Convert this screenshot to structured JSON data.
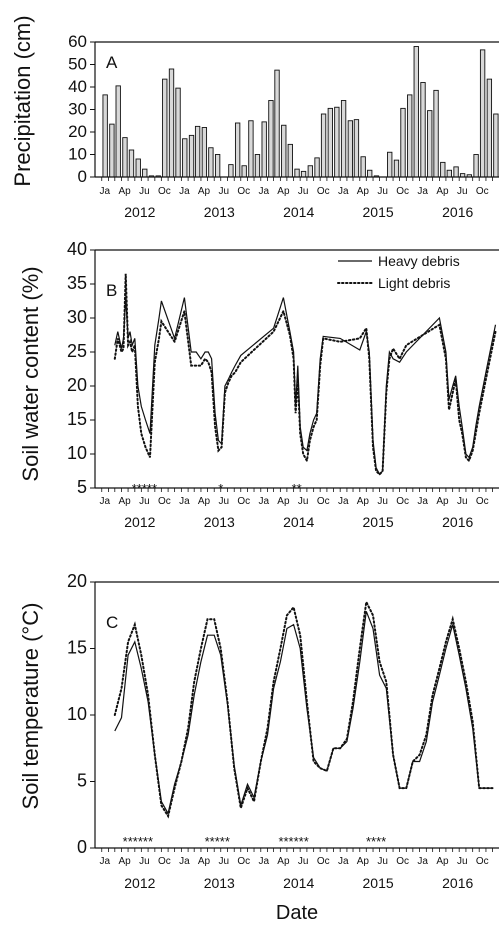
{
  "months": [
    "Ja",
    "Ap",
    "Ju",
    "Oc"
  ],
  "years": [
    "2012",
    "2013",
    "2014",
    "2015",
    "2016"
  ],
  "xlabel": "Date",
  "chart_data": [
    {
      "type": "bar",
      "panel": "A",
      "ylabel": "Precipitation (cm)",
      "ylim": [
        0,
        60
      ],
      "yticks": [
        0,
        10,
        20,
        30,
        40,
        50,
        60
      ],
      "x": [
        "2012-01",
        "2012-02",
        "2012-03",
        "2012-04",
        "2012-05",
        "2012-06",
        "2012-07",
        "2012-08",
        "2012-09",
        "2012-10",
        "2012-11",
        "2012-12",
        "2013-01",
        "2013-02",
        "2013-03",
        "2013-04",
        "2013-05",
        "2013-06",
        "2013-07",
        "2013-08",
        "2013-09",
        "2013-10",
        "2013-11",
        "2013-12",
        "2014-01",
        "2014-02",
        "2014-03",
        "2014-04",
        "2014-05",
        "2014-06",
        "2014-07",
        "2014-08",
        "2014-09",
        "2014-10",
        "2014-11",
        "2014-12",
        "2015-01",
        "2015-02",
        "2015-03",
        "2015-04",
        "2015-05",
        "2015-06",
        "2015-07",
        "2015-08",
        "2015-09",
        "2015-10",
        "2015-11",
        "2015-12",
        "2016-01",
        "2016-02",
        "2016-03",
        "2016-04",
        "2016-05",
        "2016-06",
        "2016-07",
        "2016-08",
        "2016-09",
        "2016-10",
        "2016-11",
        "2016-12"
      ],
      "values": [
        36.5,
        23.5,
        40.5,
        17.5,
        12,
        8,
        3.5,
        0.5,
        0.5,
        43.5,
        48,
        39.5,
        17,
        18.5,
        22.5,
        22,
        13,
        10,
        0,
        5.5,
        24,
        5,
        25,
        10,
        24.5,
        34,
        47.5,
        23,
        14.5,
        3.5,
        2.5,
        5,
        8.5,
        28,
        30.5,
        31,
        34,
        25,
        25.5,
        9,
        3,
        0.5,
        0,
        11,
        7.5,
        30.5,
        36.5,
        58,
        42,
        29.5,
        38.5,
        6.5,
        3,
        4.5,
        1.5,
        1,
        10,
        56.5,
        43.5,
        28
      ]
    },
    {
      "type": "line",
      "panel": "B",
      "ylabel": "Soil water content (%)",
      "ylim": [
        5,
        40
      ],
      "yticks": [
        5,
        10,
        15,
        20,
        25,
        30,
        35,
        40
      ],
      "series": [
        {
          "name": "Heavy debris",
          "style": "solid",
          "x": [
            "2012-03-01",
            "2012-03-15",
            "2012-04-01",
            "2012-04-10",
            "2012-04-20",
            "2012-05-01",
            "2012-05-10",
            "2012-05-20",
            "2012-06-01",
            "2012-06-15",
            "2012-07-01",
            "2012-07-20",
            "2012-08-10",
            "2012-09-01",
            "2012-09-20",
            "2012-10-01",
            "2012-12-01",
            "2013-01-15",
            "2013-02-15",
            "2013-03-10",
            "2013-04-01",
            "2013-04-20",
            "2013-05-05",
            "2013-05-20",
            "2013-06-05",
            "2013-06-20",
            "2013-07-05",
            "2013-07-20",
            "2013-08-05",
            "2013-08-20",
            "2013-09-05",
            "2013-10-01",
            "2014-03-01",
            "2014-04-15",
            "2014-05-15",
            "2014-06-01",
            "2014-06-10",
            "2014-06-20",
            "2014-07-01",
            "2014-07-15",
            "2014-08-01",
            "2014-08-15",
            "2014-09-01",
            "2014-09-15",
            "2014-10-01",
            "2014-10-15",
            "2015-01-01",
            "2015-04-01",
            "2015-05-01",
            "2015-05-15",
            "2015-06-01",
            "2015-06-15",
            "2015-07-01",
            "2015-07-15",
            "2015-08-01",
            "2015-08-15",
            "2015-09-01",
            "2015-10-01",
            "2015-11-01",
            "2016-04-01",
            "2016-05-01",
            "2016-05-15",
            "2016-06-01",
            "2016-06-15",
            "2016-07-01",
            "2016-07-15",
            "2016-08-01",
            "2016-08-15",
            "2016-09-01",
            "2016-09-15",
            "2016-10-01",
            "2016-11-01",
            "2016-12-15"
          ],
          "values": [
            26,
            28,
            25.5,
            27,
            33,
            27,
            28,
            26,
            27,
            20,
            17,
            15,
            13,
            26,
            30,
            32.5,
            27,
            33,
            25,
            25,
            24,
            25,
            25,
            24,
            16,
            12,
            11.5,
            20,
            21,
            22,
            23,
            24.5,
            28.5,
            33,
            28,
            25,
            17,
            23,
            14,
            11,
            10.5,
            13,
            15,
            16,
            24,
            27.3,
            27,
            25.3,
            28,
            25,
            12,
            8,
            7,
            7.5,
            20,
            25,
            24,
            23.5,
            25,
            30,
            25,
            18,
            20,
            21.5,
            17,
            14,
            10,
            9.5,
            11,
            14,
            17,
            22,
            29
          ]
        },
        {
          "name": "Light debris",
          "style": "dotted",
          "x": [
            "2012-03-01",
            "2012-03-15",
            "2012-04-01",
            "2012-04-10",
            "2012-04-20",
            "2012-05-01",
            "2012-05-10",
            "2012-05-20",
            "2012-06-01",
            "2012-06-15",
            "2012-07-01",
            "2012-07-20",
            "2012-08-10",
            "2012-09-01",
            "2012-09-20",
            "2012-10-01",
            "2012-12-01",
            "2013-01-15",
            "2013-02-15",
            "2013-03-10",
            "2013-04-01",
            "2013-04-20",
            "2013-05-05",
            "2013-05-20",
            "2013-06-05",
            "2013-06-20",
            "2013-07-05",
            "2013-07-20",
            "2013-08-05",
            "2013-08-20",
            "2013-09-05",
            "2013-10-01",
            "2014-03-01",
            "2014-04-15",
            "2014-05-15",
            "2014-06-01",
            "2014-06-10",
            "2014-06-20",
            "2014-07-01",
            "2014-07-15",
            "2014-08-01",
            "2014-08-15",
            "2014-09-01",
            "2014-09-15",
            "2014-10-01",
            "2014-10-15",
            "2015-01-01",
            "2015-04-01",
            "2015-05-01",
            "2015-05-15",
            "2015-06-01",
            "2015-06-15",
            "2015-07-01",
            "2015-07-15",
            "2015-08-01",
            "2015-08-15",
            "2015-09-01",
            "2015-10-01",
            "2015-11-01",
            "2016-04-01",
            "2016-05-01",
            "2016-05-15",
            "2016-06-01",
            "2016-06-15",
            "2016-07-01",
            "2016-07-15",
            "2016-08-01",
            "2016-08-15",
            "2016-09-01",
            "2016-09-15",
            "2016-10-01",
            "2016-11-01",
            "2016-12-15"
          ],
          "values": [
            24,
            27,
            25,
            25.5,
            36.5,
            26,
            26.5,
            25,
            26,
            17,
            13,
            11,
            9.5,
            23.5,
            27,
            29.5,
            26.5,
            31,
            23,
            23,
            23,
            24,
            23.5,
            22,
            14,
            10.5,
            11,
            19,
            20.5,
            21.5,
            22,
            23.5,
            28,
            31,
            27.5,
            24,
            16,
            21,
            13,
            10,
            9,
            12,
            14,
            15,
            23,
            27,
            26.5,
            27,
            28.5,
            24,
            11,
            7.5,
            7,
            7.5,
            19,
            24,
            25.5,
            24,
            26,
            29,
            24,
            16.5,
            19,
            21,
            15,
            13,
            9.5,
            9,
            10.5,
            13,
            16,
            21,
            28
          ]
        }
      ],
      "asterisks": [
        {
          "text": "*****",
          "date": "2012-07-15"
        },
        {
          "text": "*",
          "date": "2013-07-01"
        },
        {
          "text": "**",
          "date": "2014-06-15"
        }
      ]
    },
    {
      "type": "line",
      "panel": "C",
      "ylabel": "Soil temperature (°C)",
      "ylim": [
        0,
        20
      ],
      "yticks": [
        0,
        5,
        10,
        15,
        20
      ],
      "series": [
        {
          "name": "Heavy debris",
          "style": "solid",
          "x": [
            "2012-03-01",
            "2012-04-01",
            "2012-05-01",
            "2012-06-01",
            "2012-07-01",
            "2012-08-01",
            "2012-09-01",
            "2012-10-01",
            "2012-11-01",
            "2012-12-01",
            "2013-01-01",
            "2013-02-01",
            "2013-03-01",
            "2013-04-01",
            "2013-05-01",
            "2013-06-01",
            "2013-07-01",
            "2013-08-01",
            "2013-09-01",
            "2013-10-01",
            "2013-11-01",
            "2013-12-01",
            "2014-01-01",
            "2014-02-01",
            "2014-03-01",
            "2014-04-01",
            "2014-05-01",
            "2014-06-01",
            "2014-07-01",
            "2014-08-01",
            "2014-09-01",
            "2014-10-01",
            "2014-11-01",
            "2014-12-01",
            "2015-01-01",
            "2015-02-01",
            "2015-03-01",
            "2015-04-01",
            "2015-05-01",
            "2015-06-01",
            "2015-07-01",
            "2015-08-01",
            "2015-09-01",
            "2015-10-01",
            "2015-11-01",
            "2015-12-01",
            "2016-01-01",
            "2016-02-01",
            "2016-03-01",
            "2016-04-01",
            "2016-05-01",
            "2016-06-01",
            "2016-07-01",
            "2016-08-01",
            "2016-09-01",
            "2016-10-01",
            "2016-11-01",
            "2016-12-01"
          ],
          "values": [
            8.8,
            9.8,
            14.5,
            15.5,
            13.5,
            11,
            7,
            3.5,
            2.6,
            4.8,
            6.5,
            8.5,
            11.5,
            14,
            16,
            16,
            14.5,
            10.8,
            6.2,
            3.2,
            4.8,
            3.8,
            6.5,
            8.5,
            12,
            14,
            16.5,
            16.8,
            15,
            10.5,
            6.8,
            6,
            5.8,
            7.5,
            7.5,
            8,
            10.5,
            14,
            17.8,
            16.5,
            13,
            12,
            7,
            4.5,
            4.5,
            6.5,
            6.5,
            8,
            11,
            13,
            15,
            16.8,
            14.5,
            12,
            9,
            4.5,
            4.5,
            4.5
          ]
        },
        {
          "name": "Light debris",
          "style": "dotted",
          "x": [
            "2012-03-01",
            "2012-04-01",
            "2012-05-01",
            "2012-06-01",
            "2012-07-01",
            "2012-08-01",
            "2012-09-01",
            "2012-10-01",
            "2012-11-01",
            "2012-12-01",
            "2013-01-01",
            "2013-02-01",
            "2013-03-01",
            "2013-04-01",
            "2013-05-01",
            "2013-06-01",
            "2013-07-01",
            "2013-08-01",
            "2013-09-01",
            "2013-10-01",
            "2013-11-01",
            "2013-12-01",
            "2014-01-01",
            "2014-02-01",
            "2014-03-01",
            "2014-04-01",
            "2014-05-01",
            "2014-06-01",
            "2014-07-01",
            "2014-08-01",
            "2014-09-01",
            "2014-10-01",
            "2014-11-01",
            "2014-12-01",
            "2015-01-01",
            "2015-02-01",
            "2015-03-01",
            "2015-04-01",
            "2015-05-01",
            "2015-06-01",
            "2015-07-01",
            "2015-08-01",
            "2015-09-01",
            "2015-10-01",
            "2015-11-01",
            "2015-12-01",
            "2016-01-01",
            "2016-02-01",
            "2016-03-01",
            "2016-04-01",
            "2016-05-01",
            "2016-06-01",
            "2016-07-01",
            "2016-08-01",
            "2016-09-01",
            "2016-10-01",
            "2016-11-01",
            "2016-12-01"
          ],
          "values": [
            10,
            12,
            15.5,
            16.8,
            14.5,
            11.5,
            7,
            3.2,
            2.4,
            4.5,
            6.5,
            9,
            12.5,
            15,
            17.2,
            17.2,
            15,
            11,
            6,
            3,
            4.5,
            3.5,
            6.5,
            9,
            12.5,
            15,
            17.5,
            18.1,
            16,
            11,
            6.5,
            6,
            5.8,
            7.5,
            7.5,
            8.2,
            11,
            15,
            18.5,
            17.5,
            14,
            12.5,
            7,
            4.5,
            4.5,
            6.5,
            7,
            8.5,
            11.5,
            13.5,
            15.5,
            17.2,
            15,
            12.5,
            9.5,
            4.5,
            4.5,
            4.5
          ]
        }
      ],
      "asterisks": [
        {
          "text": "******",
          "date": "2012-06-15"
        },
        {
          "text": "*****",
          "date": "2013-06-15"
        },
        {
          "text": "******",
          "date": "2014-06-01"
        },
        {
          "text": "****",
          "date": "2015-06-15"
        }
      ]
    }
  ]
}
